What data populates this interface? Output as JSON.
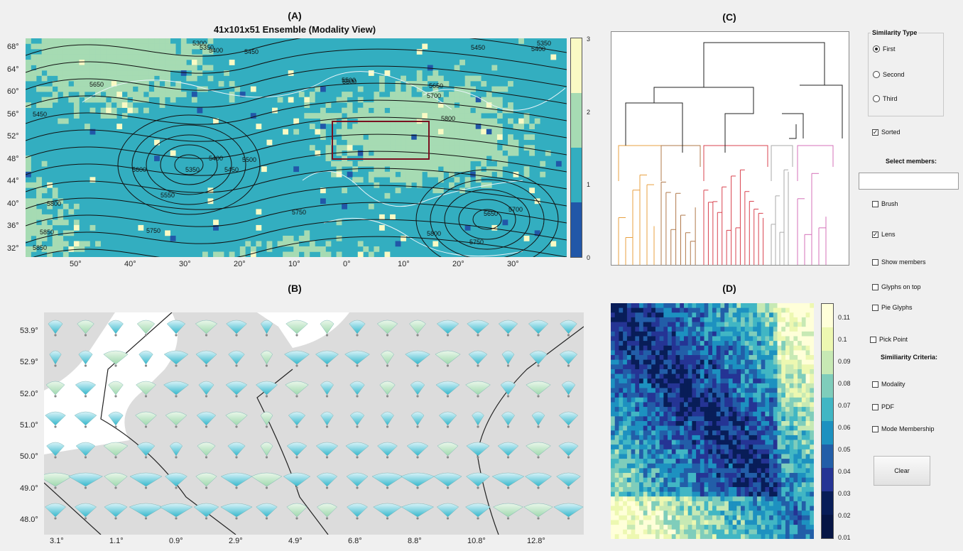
{
  "panelA": {
    "label": "(A)",
    "title": "41x101x51 Ensemble (Modality View)",
    "y_ticks": [
      "68°",
      "64°",
      "60°",
      "56°",
      "52°",
      "48°",
      "44°",
      "40°",
      "36°",
      "32°"
    ],
    "x_ticks": [
      "50°",
      "40°",
      "30°",
      "20°",
      "10°",
      "0°",
      "10°",
      "20°",
      "30°"
    ],
    "colorbar_ticks": [
      "3",
      "2",
      "1",
      "0"
    ],
    "colorbar_colors": [
      "#fafac4",
      "#a6dbb3",
      "#33aec0",
      "#2157a8"
    ],
    "contour_labels": [
      "5300",
      "5350",
      "5400",
      "5450",
      "5500",
      "5450",
      "5400",
      "5350",
      "5650",
      "5500",
      "5650",
      "5700",
      "5450",
      "5800",
      "5400",
      "5500",
      "5600",
      "5350",
      "5450",
      "5550",
      "5800",
      "5750",
      "5650",
      "5700",
      "5850",
      "5750",
      "5800",
      "5750",
      "5850"
    ]
  },
  "panelB": {
    "label": "(B)",
    "y_ticks": [
      "53.9°",
      "52.9°",
      "52.0°",
      "51.0°",
      "50.0°",
      "49.0°",
      "48.0°"
    ],
    "x_ticks": [
      "3.1°",
      "1.1°",
      "0.9°",
      "2.9°",
      "4.9°",
      "6.8°",
      "8.8°",
      "10.8°",
      "12.8°"
    ]
  },
  "panelC": {
    "label": "(C)"
  },
  "panelD": {
    "label": "(D)",
    "colorbar_ticks": [
      "0.11",
      "0.1",
      "0.09",
      "0.08",
      "0.07",
      "0.06",
      "0.05",
      "0.04",
      "0.03",
      "0.02",
      "0.01"
    ]
  },
  "controls": {
    "similarity_type_title": "Similarity Type",
    "radio_first": "First",
    "radio_second": "Second",
    "radio_third": "Third",
    "selected_radio": "First",
    "sorted_label": "Sorted",
    "sorted_checked": true,
    "select_members_label": "Select members:",
    "members_input_value": "",
    "brush_label": "Brush",
    "brush_checked": false,
    "lens_label": "Lens",
    "lens_checked": true,
    "show_members_label": "Show members",
    "glyphs_on_top_label": "Glyphs on top",
    "pie_glyphs_label": "Pie Glyphs",
    "pick_point_label": "Pick Point",
    "similarity_criteria_label": "Similiarity Criteria:",
    "modality_label": "Modality",
    "pdf_label": "PDF",
    "mode_membership_label": "Mode Membership",
    "clear_button": "Clear"
  }
}
